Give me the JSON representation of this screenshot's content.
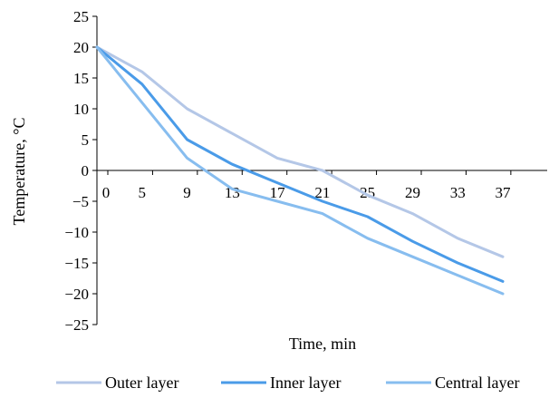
{
  "chart_data": {
    "type": "line",
    "title": "",
    "xlabel": "Time, min",
    "ylabel": "Temperature, °C",
    "x": [
      0,
      5,
      9,
      13,
      17,
      21,
      25,
      29,
      33,
      37
    ],
    "ylim": [
      -25,
      25
    ],
    "yticks": [
      25,
      20,
      15,
      10,
      5,
      0,
      -5,
      -10,
      -15,
      -20,
      -25
    ],
    "ytick_labels": [
      "25",
      "20",
      "15",
      "10",
      "5",
      "0",
      "−5",
      "−10",
      "−15",
      "−20",
      "−25"
    ],
    "xtick_labels": [
      "0",
      "5",
      "9",
      "13",
      "17",
      "21",
      "25",
      "29",
      "33",
      "37"
    ],
    "legend_position": "bottom",
    "grid": false,
    "series": [
      {
        "name": "Outer layer",
        "color": "#B4C7E7",
        "values": [
          20,
          16,
          10,
          6,
          2,
          0,
          -4,
          -7,
          -11,
          -14
        ]
      },
      {
        "name": "Inner layer",
        "color": "#4A9BE8",
        "values": [
          20,
          14,
          5,
          1,
          -2,
          -5,
          -7.5,
          -11.5,
          -15,
          -18
        ]
      },
      {
        "name": "Central layer",
        "color": "#87BDEF",
        "values": [
          20,
          11,
          2,
          -3,
          -5,
          -7,
          -11,
          -14,
          -17,
          -20
        ]
      }
    ]
  }
}
